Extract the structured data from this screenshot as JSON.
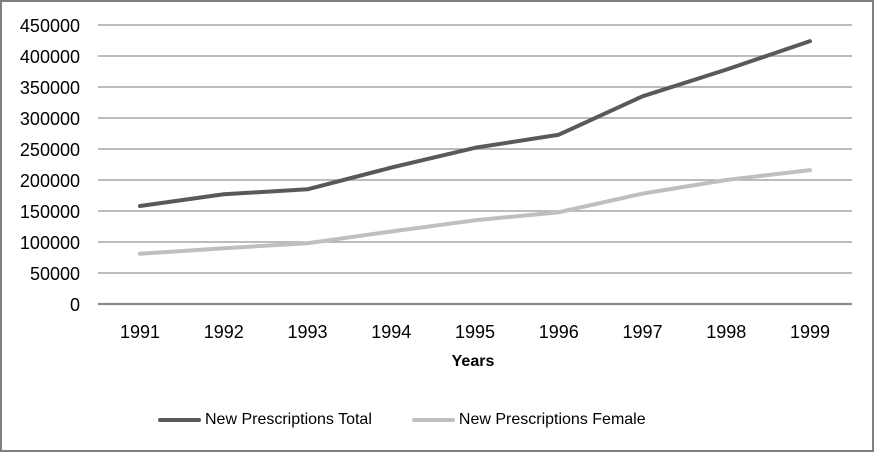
{
  "frame": {
    "background": "#ffffff",
    "border_color": "#7f7f7f",
    "gridline_color": "#a6a6a6",
    "axis_line_color": "#8c8c8c",
    "text_color": "#000000"
  },
  "chart_data": {
    "type": "line",
    "title": "",
    "xlabel": "Years",
    "ylabel": "",
    "categories": [
      "1991",
      "1992",
      "1993",
      "1994",
      "1995",
      "1996",
      "1997",
      "1998",
      "1999"
    ],
    "series": [
      {
        "name": "New Prescriptions Total",
        "color": "#595959",
        "values": [
          158000,
          177000,
          185000,
          220000,
          252000,
          273000,
          335000,
          378000,
          424000
        ]
      },
      {
        "name": "New Prescriptions Female",
        "color": "#bfbfbf",
        "values": [
          81000,
          90000,
          98000,
          117000,
          135000,
          148000,
          178000,
          200000,
          216000
        ]
      }
    ],
    "ylim": [
      0,
      450000
    ],
    "yticks": [
      0,
      50000,
      100000,
      150000,
      200000,
      250000,
      300000,
      350000,
      400000,
      450000
    ],
    "grid": "horizontal",
    "legend_position": "bottom"
  }
}
